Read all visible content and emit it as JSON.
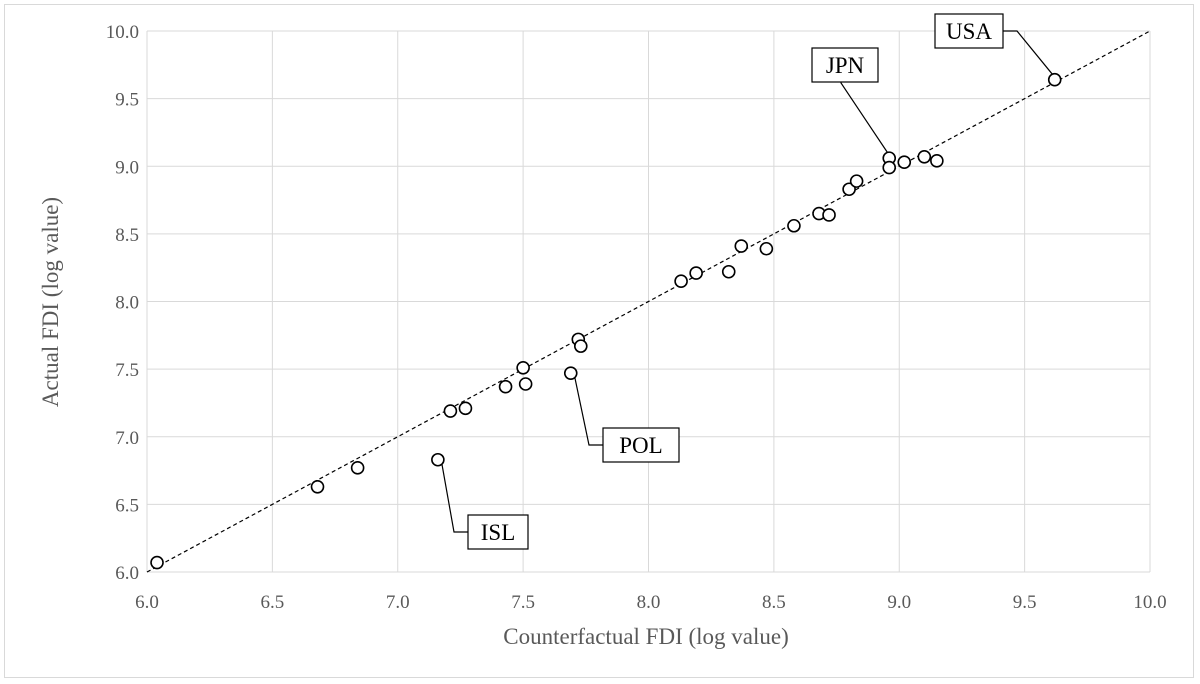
{
  "chart_data": {
    "type": "scatter",
    "title": "",
    "xlabel": "Counterfactual FDI (log value)",
    "ylabel": "Actual FDI (log value)",
    "xlim": [
      6.0,
      10.0
    ],
    "ylim": [
      6.0,
      10.0
    ],
    "x_ticks": [
      "6.0",
      "6.5",
      "7.0",
      "7.5",
      "8.0",
      "8.5",
      "9.0",
      "9.5",
      "10.0"
    ],
    "y_ticks": [
      "6.0",
      "6.5",
      "7.0",
      "7.5",
      "8.0",
      "8.5",
      "9.0",
      "9.5",
      "10.0"
    ],
    "grid": true,
    "legend": "none",
    "reference_line": {
      "style": "dashed",
      "from": [
        6.0,
        6.0
      ],
      "to": [
        10.0,
        10.0
      ],
      "color": "#000000"
    },
    "marker": {
      "shape": "open-circle",
      "color": "#000000"
    },
    "points": [
      {
        "x": 6.04,
        "y": 6.07
      },
      {
        "x": 6.68,
        "y": 6.63
      },
      {
        "x": 6.84,
        "y": 6.77
      },
      {
        "x": 7.16,
        "y": 6.83
      },
      {
        "x": 7.21,
        "y": 7.19
      },
      {
        "x": 7.27,
        "y": 7.21
      },
      {
        "x": 7.43,
        "y": 7.37
      },
      {
        "x": 7.5,
        "y": 7.51
      },
      {
        "x": 7.51,
        "y": 7.39
      },
      {
        "x": 7.69,
        "y": 7.47
      },
      {
        "x": 7.72,
        "y": 7.72
      },
      {
        "x": 7.73,
        "y": 7.67
      },
      {
        "x": 8.13,
        "y": 8.15
      },
      {
        "x": 8.19,
        "y": 8.21
      },
      {
        "x": 8.32,
        "y": 8.22
      },
      {
        "x": 8.37,
        "y": 8.41
      },
      {
        "x": 8.47,
        "y": 8.39
      },
      {
        "x": 8.58,
        "y": 8.56
      },
      {
        "x": 8.68,
        "y": 8.65
      },
      {
        "x": 8.72,
        "y": 8.64
      },
      {
        "x": 8.8,
        "y": 8.83
      },
      {
        "x": 8.83,
        "y": 8.89
      },
      {
        "x": 8.96,
        "y": 9.06
      },
      {
        "x": 8.96,
        "y": 8.99
      },
      {
        "x": 9.02,
        "y": 9.03
      },
      {
        "x": 9.1,
        "y": 9.07
      },
      {
        "x": 9.15,
        "y": 9.04
      },
      {
        "x": 9.62,
        "y": 9.64
      }
    ],
    "annotations": [
      {
        "label": "ISL",
        "x": 7.16,
        "y": 6.83
      },
      {
        "label": "POL",
        "x": 7.69,
        "y": 7.47
      },
      {
        "label": "JPN",
        "x": 8.96,
        "y": 9.06
      },
      {
        "label": "USA",
        "x": 9.62,
        "y": 9.64
      }
    ]
  }
}
